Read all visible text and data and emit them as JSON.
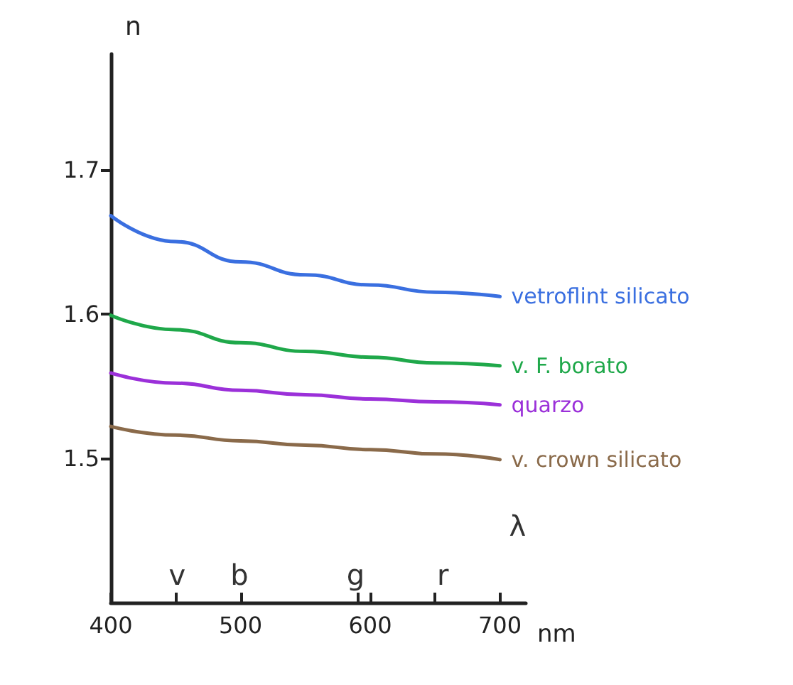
{
  "chart_data": {
    "type": "line",
    "xlabel": "nm",
    "ylabel": "n",
    "x": [
      400,
      450,
      500,
      550,
      600,
      650,
      700
    ],
    "series": [
      {
        "name": "vetroflint silicato",
        "color": "#3a6fe0",
        "values": [
          1.668,
          1.65,
          1.636,
          1.627,
          1.62,
          1.615,
          1.612
        ]
      },
      {
        "name": "v. F. borato",
        "color": "#1fa84a",
        "values": [
          1.599,
          1.589,
          1.58,
          1.574,
          1.57,
          1.566,
          1.564
        ]
      },
      {
        "name": "quarzo",
        "color": "#9b30d9",
        "values": [
          1.559,
          1.552,
          1.547,
          1.544,
          1.541,
          1.539,
          1.537
        ]
      },
      {
        "name": "v. crown silicato",
        "color": "#8a6a4a",
        "values": [
          1.522,
          1.516,
          1.512,
          1.509,
          1.506,
          1.503,
          1.499
        ]
      }
    ],
    "xlim": [
      400,
      720
    ],
    "xticks": [
      400,
      {
        "value": 450,
        "label": null
      },
      500,
      {
        "value": 590,
        "label": null
      },
      600,
      {
        "value": 650,
        "label": null
      },
      700
    ],
    "ylim": [
      1.4,
      1.78
    ],
    "yticks": [
      1.5,
      1.6,
      1.7
    ],
    "annotations": [
      "λ",
      "v",
      "b",
      "g",
      "r"
    ],
    "grid": false,
    "legend": false,
    "marker": "none",
    "line_style": "solid"
  }
}
